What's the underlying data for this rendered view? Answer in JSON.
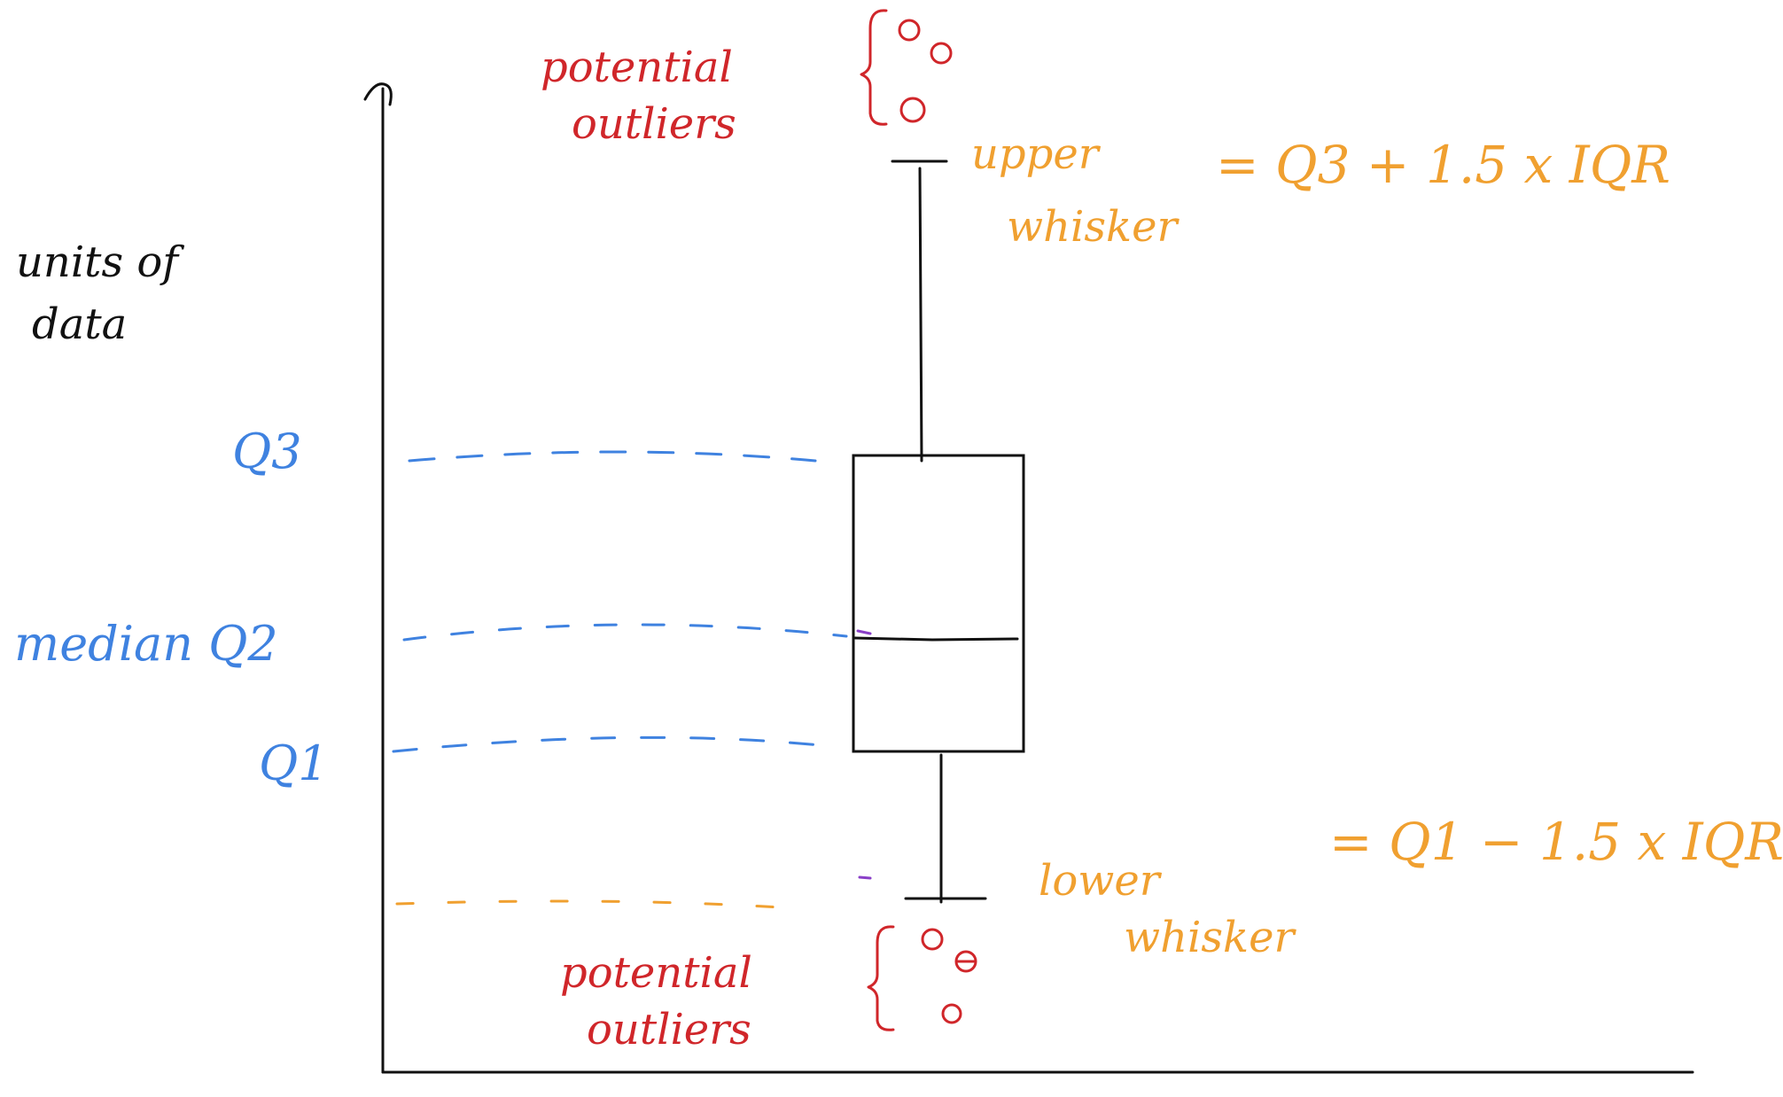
{
  "colors": {
    "ink": "#111111",
    "blue": "#3f82e0",
    "orange": "#f0a030",
    "red": "#d0262a",
    "purple": "#8a3fc8"
  },
  "labels": {
    "units_line1": "units of",
    "units_line2": "data",
    "q3": "Q3",
    "median": "median Q2",
    "q1": "Q1",
    "potential_outliers_top_line1": "potential",
    "potential_outliers_top_line2": "outliers",
    "potential_outliers_bottom_line1": "potential",
    "potential_outliers_bottom_line2": "outliers",
    "upper_whisker_line1": "upper",
    "upper_whisker_line2": "whisker",
    "upper_formula": "= Q3 + 1.5 x IQR",
    "lower_whisker_line1": "lower",
    "lower_whisker_line2": "whisker",
    "lower_formula": "= Q1 − 1.5 x IQR"
  }
}
